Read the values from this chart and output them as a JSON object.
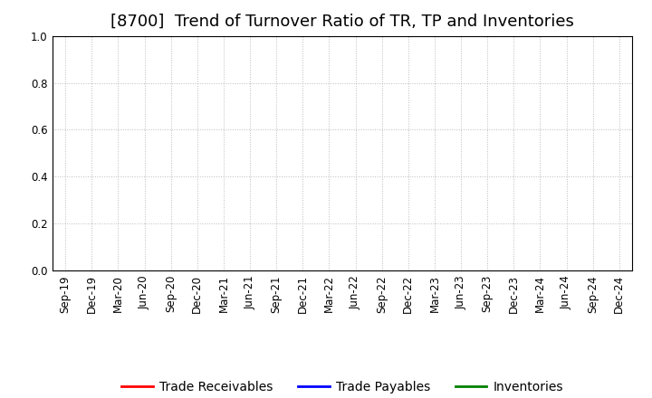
{
  "title": "[8700]  Trend of Turnover Ratio of TR, TP and Inventories",
  "x_labels": [
    "Sep-19",
    "Dec-19",
    "Mar-20",
    "Jun-20",
    "Sep-20",
    "Dec-20",
    "Mar-21",
    "Jun-21",
    "Sep-21",
    "Dec-21",
    "Mar-22",
    "Jun-22",
    "Sep-22",
    "Dec-22",
    "Mar-23",
    "Jun-23",
    "Sep-23",
    "Dec-23",
    "Mar-24",
    "Jun-24",
    "Sep-24",
    "Dec-24"
  ],
  "ylim": [
    0.0,
    1.0
  ],
  "yticks": [
    0.0,
    0.2,
    0.4,
    0.6,
    0.8,
    1.0
  ],
  "legend": [
    {
      "label": "Trade Receivables",
      "color": "#ff0000"
    },
    {
      "label": "Trade Payables",
      "color": "#0000ff"
    },
    {
      "label": "Inventories",
      "color": "#008000"
    }
  ],
  "background_color": "#ffffff",
  "grid_color": "#bbbbbb",
  "title_fontsize": 13,
  "tick_fontsize": 8.5,
  "legend_fontsize": 10
}
